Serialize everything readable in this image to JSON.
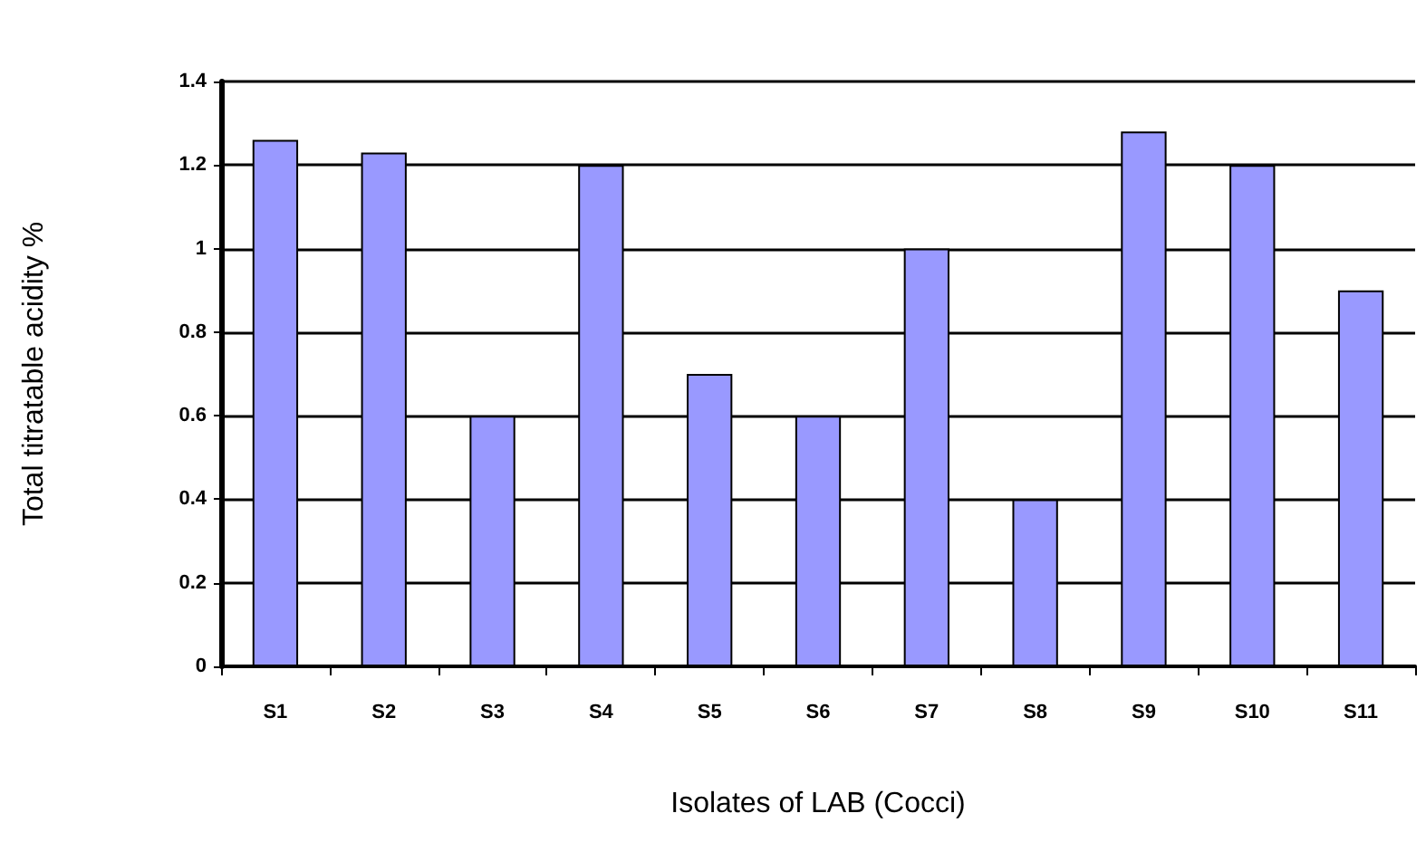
{
  "chart_data": {
    "type": "bar",
    "xlabel": "Isolates of LAB (Cocci)",
    "ylabel": "Total titratable acidity %",
    "categories": [
      "S1",
      "S2",
      "S3",
      "S4",
      "S5",
      "S6",
      "S7",
      "S8",
      "S9",
      "S10",
      "S11"
    ],
    "values": [
      1.26,
      1.23,
      0.6,
      1.2,
      0.7,
      0.6,
      1.0,
      0.4,
      1.28,
      1.2,
      0.9
    ],
    "color": "#9999ff",
    "ylim": [
      0,
      1.4
    ],
    "yticks": [
      0,
      0.2,
      0.4,
      0.6,
      0.8,
      1,
      1.2,
      1.4
    ],
    "grid": "y"
  }
}
